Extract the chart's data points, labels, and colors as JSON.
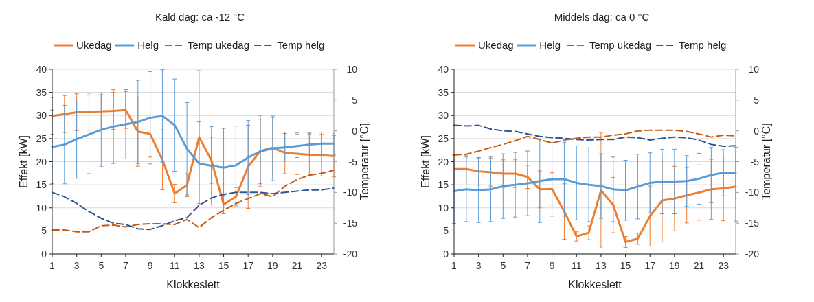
{
  "chart_data": [
    {
      "type": "line",
      "title": "Kald dag: ca -12 °C",
      "xlabel": "Klokkeslett",
      "ylabel": "Effekt [kW]",
      "y2label": "Temperatur [°C]",
      "x": [
        1,
        2,
        3,
        4,
        5,
        6,
        7,
        8,
        9,
        10,
        11,
        12,
        13,
        14,
        15,
        16,
        17,
        18,
        19,
        20,
        21,
        22,
        23,
        24
      ],
      "xlim": [
        1,
        24
      ],
      "xticks": [
        1,
        3,
        5,
        7,
        9,
        11,
        13,
        15,
        17,
        19,
        21,
        23
      ],
      "ylim": [
        0,
        40
      ],
      "yticks": [
        0,
        5,
        10,
        15,
        20,
        25,
        30,
        35,
        40
      ],
      "y2lim": [
        -20,
        10
      ],
      "y2ticks": [
        -20,
        -15,
        -10,
        -5,
        0,
        5,
        10
      ],
      "grid": "y",
      "legend": "top",
      "marker": "none",
      "series": [
        {
          "name": "Ukedag",
          "color": "#ed7d31",
          "line_style": "solid",
          "values": [
            29.9,
            30.3,
            30.7,
            30.8,
            30.9,
            31,
            31.2,
            26.5,
            26,
            20.4,
            13.1,
            14.9,
            25.3,
            20.3,
            10.7,
            12.4,
            18.9,
            22.3,
            23,
            21.9,
            21.7,
            21.5,
            21.4,
            21.2
          ],
          "errors": [
            4,
            4,
            4,
            4,
            3.6,
            4,
            4,
            7.5,
            5,
            6.5,
            2,
            2.5,
            14.4,
            5,
            2,
            2,
            9,
            7.7,
            6.6,
            4.5,
            4.5,
            4.5,
            4.5,
            4.5
          ]
        },
        {
          "name": "Helg",
          "color": "#5b9bd5",
          "line_style": "solid",
          "values": [
            23.2,
            23.7,
            24.9,
            25.9,
            26.9,
            27.6,
            28.1,
            28.6,
            29.5,
            29.9,
            27.9,
            22.8,
            19.6,
            19.1,
            18.7,
            19.2,
            20.9,
            22.2,
            22.9,
            23.1,
            23.4,
            23.7,
            23.9,
            23.9
          ],
          "errors": [
            8,
            8.5,
            8.5,
            8.5,
            8,
            8,
            7.5,
            9,
            10,
            10,
            10,
            10,
            9,
            8.5,
            8.5,
            8.5,
            8,
            7,
            7,
            3,
            2.5,
            2.5,
            2.5,
            2.5
          ]
        },
        {
          "name": "Temp ukedag",
          "color": "#c55a11",
          "line_style": "dashed",
          "axis": "y2",
          "values": [
            -16.1,
            -16.1,
            -16.4,
            -16.4,
            -15.4,
            -15.3,
            -15.6,
            -15.2,
            -15.1,
            -15.1,
            -15.2,
            -14.4,
            -15.7,
            -14.1,
            -12.9,
            -11.8,
            -11,
            -10.2,
            -10.7,
            -9,
            -7.9,
            -7.2,
            -6.9,
            -6.4
          ]
        },
        {
          "name": "Temp helg",
          "color": "#2f5597",
          "line_style": "dashed",
          "axis": "y2",
          "values": [
            -10,
            -10.7,
            -11.8,
            -13.1,
            -14.2,
            -15,
            -15.2,
            -15.9,
            -16,
            -15.4,
            -14.6,
            -14.1,
            -12.1,
            -10.9,
            -10.3,
            -10,
            -10,
            -10,
            -10.2,
            -10,
            -9.8,
            -9.6,
            -9.6,
            -9.3
          ]
        }
      ]
    },
    {
      "type": "line",
      "title": "Middels dag: ca 0 °C",
      "xlabel": "Klokkeslett",
      "ylabel": "Effekt [kW]",
      "y2label": "Temperatur [°C]",
      "x": [
        1,
        2,
        3,
        4,
        5,
        6,
        7,
        8,
        9,
        10,
        11,
        12,
        13,
        14,
        15,
        16,
        17,
        18,
        19,
        20,
        21,
        22,
        23,
        24
      ],
      "xlim": [
        1,
        24
      ],
      "xticks": [
        1,
        3,
        5,
        7,
        9,
        11,
        13,
        15,
        17,
        19,
        21,
        23
      ],
      "ylim": [
        0,
        40
      ],
      "yticks": [
        0,
        5,
        10,
        15,
        20,
        25,
        30,
        35,
        40
      ],
      "y2lim": [
        -20,
        10
      ],
      "y2ticks": [
        -20,
        -15,
        -10,
        -5,
        0,
        5,
        10
      ],
      "grid": "y",
      "legend": "top",
      "marker": "none",
      "series": [
        {
          "name": "Ukedag",
          "color": "#ed7d31",
          "line_style": "solid",
          "values": [
            18.4,
            18.4,
            17.9,
            17.7,
            17.4,
            17.4,
            16.7,
            14,
            14.1,
            9.2,
            3.8,
            4.6,
            13.8,
            10.6,
            2.6,
            3.3,
            8.2,
            11.6,
            12,
            12.7,
            13.3,
            14,
            14.2,
            14.6
          ],
          "errors": [
            3,
            3,
            3,
            3,
            3,
            3,
            2.5,
            4,
            3.5,
            6,
            1,
            1.5,
            12.5,
            6,
            1.2,
            1.2,
            6.5,
            9,
            7,
            6,
            6,
            6.5,
            7,
            7.5
          ]
        },
        {
          "name": "Helg",
          "color": "#5b9bd5",
          "line_style": "solid",
          "values": [
            13.6,
            14,
            13.8,
            14,
            14.7,
            15,
            15.3,
            15.8,
            16.2,
            16.2,
            15.4,
            15,
            14.7,
            14,
            13.8,
            14.6,
            15.4,
            15.7,
            15.7,
            15.8,
            16.3,
            17.1,
            17.6,
            17.6
          ],
          "errors": [
            7,
            7,
            7,
            7,
            7,
            7,
            7,
            9,
            8,
            8,
            8,
            8,
            7,
            7,
            6.5,
            7,
            6.5,
            7,
            7,
            5.5,
            5.5,
            6,
            5,
            5.5
          ]
        },
        {
          "name": "Temp ukedag",
          "color": "#c55a11",
          "line_style": "dashed",
          "axis": "y2",
          "values": [
            -3.9,
            -3.8,
            -3.3,
            -2.7,
            -2.2,
            -1.6,
            -0.9,
            -1.4,
            -2,
            -1.5,
            -1.2,
            -1,
            -1,
            -0.7,
            -0.5,
            0,
            0.1,
            0.1,
            0.1,
            -0.1,
            -0.5,
            -1,
            -0.7,
            -0.8
          ]
        },
        {
          "name": "Temp helg",
          "color": "#2f5597",
          "line_style": "dashed",
          "axis": "y2",
          "values": [
            0.9,
            0.8,
            0.9,
            0.3,
            0,
            -0.1,
            -0.5,
            -0.9,
            -1.1,
            -1.2,
            -1.4,
            -1.5,
            -1.4,
            -1.4,
            -1,
            -1.1,
            -1.5,
            -1.2,
            -1,
            -1.1,
            -1.5,
            -2.2,
            -2.5,
            -2.4
          ]
        }
      ]
    }
  ]
}
